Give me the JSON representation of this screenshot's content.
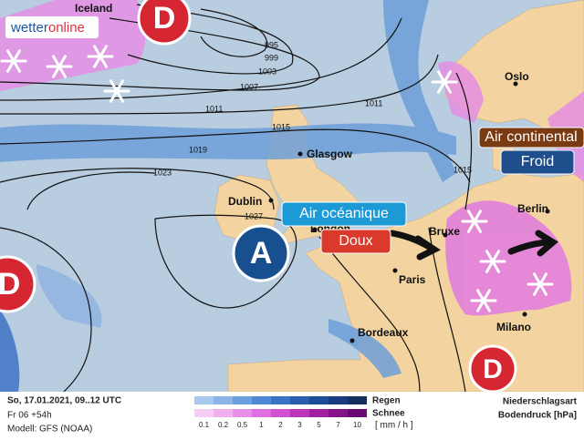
{
  "logo": {
    "part1": "wetter",
    "part2": "online"
  },
  "pressure_centers": [
    {
      "label": "D"
    },
    {
      "label": "D"
    },
    {
      "label": "D"
    },
    {
      "label": "A"
    }
  ],
  "cities": [
    "Iceland",
    "Oslo",
    "Glasgow",
    "Dublin",
    "London",
    "Berlin",
    "Bruxe",
    "Paris",
    "Bordeaux",
    "Milano"
  ],
  "isobar_labels": [
    "995",
    "999",
    "1003",
    "1007",
    "1011",
    "1011",
    "1015",
    "1015",
    "1019",
    "1023",
    "1027"
  ],
  "annotations": {
    "continental": "Air continental",
    "cold": "Froid",
    "oceanic": "Air océanique",
    "mild": "Doux"
  },
  "footer": {
    "date": "So, 17.01.2021, 09..12 UTC",
    "run": "Fr 06 +54h",
    "model": "Modell: GFS (NOAA)",
    "rain": "Regen",
    "snow": "Schnee",
    "scale": [
      "0.1",
      "0.2",
      "0.5",
      "1",
      "2",
      "3",
      "5",
      "7",
      "10"
    ],
    "unit": "[ mm / h ]",
    "type_title": "Niederschlagsart",
    "pressure_title": "Bodendruck [hPa]"
  }
}
